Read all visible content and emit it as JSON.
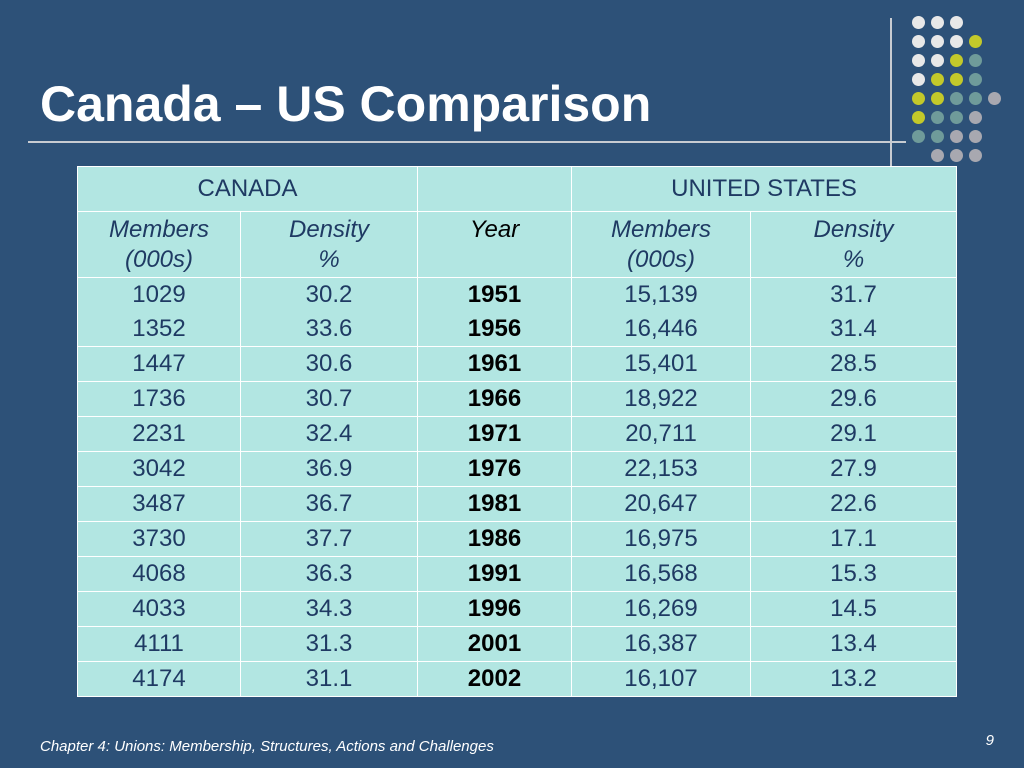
{
  "title": "Canada – US Comparison",
  "table": {
    "group_headers": {
      "canada": "CANADA",
      "middle": "",
      "us": "UNITED STATES"
    },
    "sub_headers": {
      "ca_members": [
        "Members",
        "(000s)"
      ],
      "ca_density": [
        "Density",
        "%"
      ],
      "year": "Year",
      "us_members": [
        "Members",
        "(000s)"
      ],
      "us_density": [
        "Density",
        "%"
      ]
    },
    "rows": [
      {
        "ca_members": "1029",
        "ca_density": "30.2",
        "year": "1951",
        "us_members": "15,139",
        "us_density": "31.7"
      },
      {
        "ca_members": "1352",
        "ca_density": "33.6",
        "year": "1956",
        "us_members": "16,446",
        "us_density": "31.4"
      },
      {
        "ca_members": "1447",
        "ca_density": "30.6",
        "year": "1961",
        "us_members": "15,401",
        "us_density": "28.5"
      },
      {
        "ca_members": "1736",
        "ca_density": "30.7",
        "year": "1966",
        "us_members": "18,922",
        "us_density": "29.6"
      },
      {
        "ca_members": "2231",
        "ca_density": "32.4",
        "year": "1971",
        "us_members": "20,711",
        "us_density": "29.1"
      },
      {
        "ca_members": "3042",
        "ca_density": "36.9",
        "year": "1976",
        "us_members": "22,153",
        "us_density": "27.9"
      },
      {
        "ca_members": "3487",
        "ca_density": "36.7",
        "year": "1981",
        "us_members": "20,647",
        "us_density": "22.6"
      },
      {
        "ca_members": "3730",
        "ca_density": "37.7",
        "year": "1986",
        "us_members": "16,975",
        "us_density": "17.1"
      },
      {
        "ca_members": "4068",
        "ca_density": "36.3",
        "year": "1991",
        "us_members": "16,568",
        "us_density": "15.3"
      },
      {
        "ca_members": "4033",
        "ca_density": "34.3",
        "year": "1996",
        "us_members": "16,269",
        "us_density": "14.5"
      },
      {
        "ca_members": "4111",
        "ca_density": "31.3",
        "year": "2001",
        "us_members": "16,387",
        "us_density": "13.4"
      },
      {
        "ca_members": "4174",
        "ca_density": "31.1",
        "year": "2002",
        "us_members": "16,107",
        "us_density": "13.2"
      }
    ]
  },
  "footer": "Chapter 4: Unions: Membership, Structures, Actions and Challenges",
  "page_number": "9",
  "colors": {
    "background": "#2d5178",
    "table_fill": "#b2e6e2",
    "table_text": "#1f3a63",
    "dot_white": "#e8e8e8",
    "dot_yellow": "#c3c92a",
    "dot_teal": "#6f9b9a",
    "dot_grey": "#a8a8b0"
  }
}
